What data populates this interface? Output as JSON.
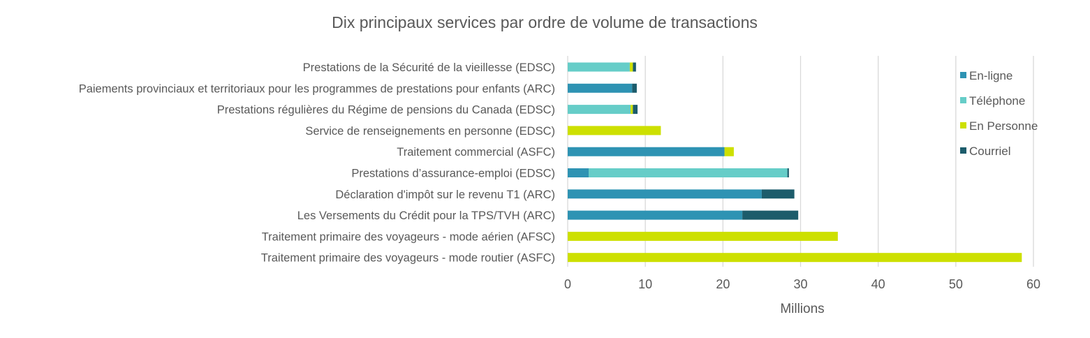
{
  "chart_data": {
    "type": "bar",
    "orientation": "horizontal",
    "stacked": true,
    "title": "Dix principaux services par ordre de volume de transactions",
    "xlabel": "Millions",
    "ylabel": "",
    "xlim": [
      0,
      60
    ],
    "xticks": [
      0,
      10,
      20,
      30,
      40,
      50,
      60
    ],
    "grid": true,
    "legend_position": "right",
    "categories": [
      "Prestations de la Sécurité de la vieillesse (EDSC)",
      "Paiements provinciaux et territoriaux pour les programmes de prestations pour enfants (ARC)",
      "Prestations régulières du Régime de pensions du Canada (EDSC)",
      "Service de renseignements en personne (EDSC)",
      "Traitement commercial (ASFC)",
      "Prestations d’assurance-emploi (EDSC)",
      "Déclaration d'impôt sur le revenu T1 (ARC)",
      "Les Versements du Crédit pour la TPS/TVH (ARC)",
      "Traitement primaire des voyageurs - mode aérien (AFSC)",
      "Traitement primaire des voyageurs - mode routier (ASFC)"
    ],
    "series": [
      {
        "name": "En-ligne",
        "color": "#2e93b3",
        "values": [
          0,
          8.3,
          0,
          0,
          20.2,
          2.7,
          25.0,
          22.5,
          0,
          0
        ]
      },
      {
        "name": "Téléphone",
        "color": "#66cdc8",
        "values": [
          8.0,
          0,
          8.1,
          0,
          0,
          25.6,
          0,
          0,
          0,
          0
        ]
      },
      {
        "name": "En Personne",
        "color": "#cde000",
        "values": [
          0.4,
          0,
          0.3,
          12.0,
          1.2,
          0,
          0,
          0,
          34.8,
          58.5
        ]
      },
      {
        "name": "Courriel",
        "color": "#1c5c6b",
        "values": [
          0.4,
          0.6,
          0.6,
          0,
          0,
          0.2,
          4.2,
          7.2,
          0,
          0
        ]
      }
    ]
  }
}
